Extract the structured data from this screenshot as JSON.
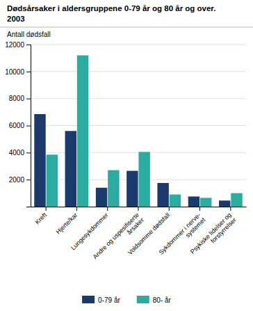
{
  "chart_data": {
    "type": "bar",
    "title": "Dødsårsaker i aldersgruppene 0-79 år og 80 år og over.",
    "subtitle": "2003",
    "ylabel": "Antall dødsfall",
    "categories": [
      "Kreft",
      "Hjerte/kar",
      "Lungesykdommer",
      "Andre og uspesifiserte\nårsaker",
      "Voldsomme dødsfall",
      "Sykdommer i nerve-\nsystemet",
      "Psykiske lidelser og\nforstyrrelser"
    ],
    "series": [
      {
        "name": "0-79 år",
        "color": "#1a3a6b",
        "values": [
          6850,
          5600,
          1400,
          2650,
          1750,
          750,
          450
        ]
      },
      {
        "name": "80- år",
        "color": "#2aada0",
        "values": [
          3850,
          11200,
          2700,
          4050,
          900,
          650,
          1000
        ]
      }
    ],
    "ylim": [
      0,
      12000
    ],
    "yticks": [
      2000,
      4000,
      6000,
      8000,
      10000,
      12000
    ],
    "grid": true,
    "legend": "bottom"
  }
}
